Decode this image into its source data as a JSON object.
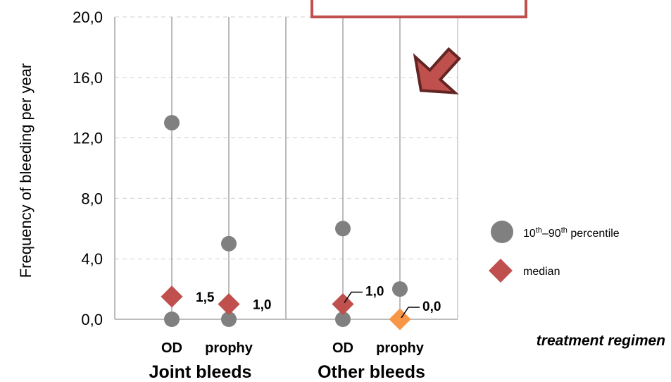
{
  "chart_data": {
    "type": "scatter",
    "ylabel": "Frequency of bleeding per year",
    "ylim": [
      0,
      20
    ],
    "yticks": [
      "0,0",
      "4,0",
      "8,0",
      "12,0",
      "16,0",
      "20,0"
    ],
    "y_tick_values": [
      0,
      4,
      8,
      12,
      16,
      20
    ],
    "xlabel": "treatment regimen",
    "groups": [
      {
        "name": "Joint bleeds",
        "categories": [
          "OD",
          "prophy"
        ]
      },
      {
        "name": "Other bleeds",
        "categories": [
          "OD",
          "prophy"
        ]
      }
    ],
    "series": [
      {
        "name": "10th–90th percentile",
        "marker": "circle",
        "color": "#808080",
        "points": [
          {
            "group": 0,
            "cat": 0,
            "values": [
              0,
              13
            ]
          },
          {
            "group": 0,
            "cat": 1,
            "values": [
              0,
              5
            ]
          },
          {
            "group": 1,
            "cat": 0,
            "values": [
              0,
              6
            ]
          },
          {
            "group": 1,
            "cat": 1,
            "values": [
              2
            ]
          }
        ]
      },
      {
        "name": "median",
        "marker": "diamond",
        "color": "#c0504d",
        "points": [
          {
            "group": 0,
            "cat": 0,
            "value": 1.5,
            "label": "1,5"
          },
          {
            "group": 0,
            "cat": 1,
            "value": 1.0,
            "label": "1,0"
          },
          {
            "group": 1,
            "cat": 0,
            "value": 1.0,
            "label": "1,0"
          },
          {
            "group": 1,
            "cat": 1,
            "value": 0.0,
            "label": "0,0",
            "color": "#f79646"
          }
        ]
      }
    ],
    "legend": {
      "position": "right",
      "percentile_parts": [
        "10",
        "th",
        "–90",
        "th",
        " percentile"
      ],
      "median": "median"
    },
    "grid": true
  }
}
